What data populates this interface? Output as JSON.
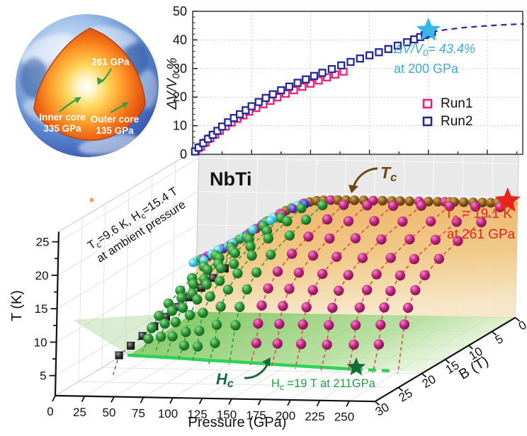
{
  "earth": {
    "label_core_pressure": "261 GPa",
    "label_inner_core_1": "Inner core",
    "label_inner_core_2": "335 GPa",
    "label_outer_core_1": "Outer core",
    "label_outer_core_2": "135 GPa"
  },
  "chart_data": [
    {
      "id": "volume-compression",
      "type": "scatter",
      "xlabel": "",
      "ylabel": "ΔV/V_0 %",
      "xlim": [
        0,
        280
      ],
      "ylim": [
        0,
        50
      ],
      "xticks_gridlines": [
        50,
        100,
        150,
        200,
        250
      ],
      "yticks": [
        0,
        10,
        20,
        30,
        40,
        50
      ],
      "grid": "dotted",
      "legend": {
        "position": "right-middle",
        "entries": [
          {
            "label": "Run1",
            "color": "#ee1e7c"
          },
          {
            "label": "Run2",
            "color": "#252a96"
          }
        ]
      },
      "series": [
        {
          "name": "Run1",
          "marker": "open-square",
          "color": "#ee1e7c",
          "x": [
            3,
            7,
            11,
            15,
            19,
            23,
            28,
            33,
            38,
            43,
            48,
            54,
            60,
            66,
            72,
            79,
            86,
            93,
            100,
            107,
            114,
            121,
            128
          ],
          "y": [
            1.1,
            2.6,
            4.1,
            5.6,
            6.9,
            8.2,
            9.7,
            11.1,
            12.4,
            13.6,
            14.9,
            16.2,
            17.5,
            18.7,
            19.9,
            21.2,
            22.4,
            23.6,
            24.7,
            25.8,
            26.9,
            27.9,
            28.9
          ]
        },
        {
          "name": "Run2",
          "marker": "open-square",
          "color": "#252a96",
          "x": [
            2,
            5,
            9,
            13,
            17,
            21,
            25,
            30,
            35,
            40,
            45,
            50,
            56,
            62,
            68,
            75,
            82,
            89,
            96,
            103,
            110,
            118,
            126,
            134,
            142,
            150,
            158,
            166,
            174,
            182,
            188,
            193,
            197,
            200,
            203
          ],
          "y": [
            1.0,
            2.3,
            3.9,
            5.4,
            6.8,
            8.2,
            9.7,
            11.2,
            12.7,
            14.0,
            15.4,
            16.8,
            18.3,
            19.7,
            21.0,
            22.4,
            23.7,
            25.0,
            26.2,
            27.4,
            28.5,
            29.8,
            31.1,
            32.3,
            33.5,
            34.6,
            35.7,
            36.8,
            38.0,
            39.2,
            40.2,
            41.0,
            41.7,
            42.2,
            42.7
          ]
        }
      ],
      "fit_extrapolation": {
        "style": "dashed",
        "color": "#2b2f9e",
        "x": [
          203,
          215,
          230,
          245,
          260,
          275,
          281
        ],
        "y": [
          42.8,
          43.6,
          44.3,
          44.8,
          45.2,
          45.5,
          45.6
        ]
      },
      "annotation": {
        "line1": "ΔV/V_0= 43.4%",
        "line2": "at 200 GPa",
        "color": "#3fa9dc",
        "star_x": 200,
        "star_y": 43.4,
        "star_color": "#37b6ea"
      }
    },
    {
      "id": "nbti-3d-phase-diagram",
      "type": "scatter3d",
      "title": "NbTi",
      "x_axis": {
        "label": "Pressure (GPa)",
        "range": [
          0,
          272
        ],
        "ticks": [
          0,
          25,
          50,
          75,
          100,
          125,
          150,
          175,
          200,
          225,
          250
        ]
      },
      "y_axis": {
        "label": "B (T)",
        "range": [
          0,
          30
        ],
        "ticks": [
          0,
          5,
          10,
          15,
          20,
          25,
          30
        ]
      },
      "z_axis": {
        "label": "T (K)",
        "range": [
          2,
          26.5
        ],
        "ticks": [
          5,
          10,
          15,
          20,
          25
        ]
      },
      "sphere_palette": {
        "green": "#2a9235",
        "magenta": "#c0227e",
        "brown": "#8a5a1a",
        "cyan": "#45ccdf",
        "purple": "#6a35c8",
        "blue": "#3a3ae0",
        "black": "#3c3c3c"
      },
      "tc_curve": {
        "color": "#f7a13d",
        "P": [
          0,
          10,
          20,
          30,
          40,
          50,
          60,
          70,
          80,
          90,
          100,
          110,
          130,
          150,
          170,
          190,
          210,
          230,
          250,
          261,
          272
        ],
        "T": [
          9.6,
          10.4,
          11.3,
          12.3,
          13.4,
          14.6,
          15.8,
          16.9,
          17.8,
          18.5,
          18.9,
          19.05,
          19.1,
          19.1,
          19.1,
          19.1,
          19.1,
          19.1,
          19.1,
          19.1,
          19.1
        ]
      },
      "hc_curve": {
        "color": "#2fd157",
        "P": [
          5,
          25,
          50,
          75,
          100,
          125,
          150,
          175,
          200,
          211
        ],
        "B": [
          15.5,
          15.8,
          16.2,
          16.7,
          17.1,
          17.5,
          18.0,
          18.4,
          18.8,
          19.0
        ],
        "dashed_extension_P": [
          211,
          245
        ]
      },
      "ridge_markers": {
        "P": [
          0,
          4,
          9,
          13,
          18,
          22,
          27,
          31,
          36,
          40,
          45,
          50,
          55,
          60,
          65,
          70,
          75,
          80,
          85,
          90,
          95,
          101,
          107,
          113,
          119,
          126,
          133,
          141,
          149,
          157,
          165,
          172,
          180,
          188,
          196,
          204,
          210,
          214,
          218,
          226,
          234,
          242,
          249,
          255,
          261
        ],
        "colors": [
          "cyan",
          "green",
          "magenta",
          "cyan",
          "brown",
          "purple",
          "cyan",
          "magenta",
          "green",
          "cyan",
          "brown",
          "magenta",
          "purple",
          "green",
          "cyan",
          "magenta",
          "brown",
          "green",
          "cyan",
          "purple",
          "brown",
          "brown",
          "brown",
          "magenta",
          "brown",
          "brown",
          "brown",
          "brown",
          "magenta",
          "brown",
          "brown",
          "brown",
          "brown",
          "magenta",
          "brown",
          "brown",
          "magenta",
          "brown",
          "brown",
          "brown",
          "brown",
          "brown",
          "brown",
          "brown",
          "brown"
        ]
      },
      "extra_markers": [
        [
          5,
          2,
          10.2,
          "cyan"
        ],
        [
          12,
          1.5,
          10.7,
          "purple"
        ],
        [
          18,
          3,
          11,
          "cyan"
        ],
        [
          26,
          2,
          12.2,
          "cyan"
        ],
        [
          33,
          1,
          12.7,
          "magenta"
        ],
        [
          40,
          2.5,
          13.5,
          "cyan"
        ],
        [
          48,
          1.5,
          14.3,
          "purple"
        ],
        [
          55,
          2,
          15.3,
          "cyan"
        ],
        [
          62,
          1,
          16.1,
          "green"
        ],
        [
          70,
          2,
          16.7,
          "cyan"
        ],
        [
          78,
          1.5,
          17.5,
          "magenta"
        ],
        [
          85,
          1,
          18.1,
          "purple"
        ],
        [
          95,
          1,
          18.8,
          "blue"
        ]
      ],
      "field_scans": [
        {
          "P": 28,
          "color": "black",
          "marker": "cube",
          "B": [
            1,
            3.5,
            6,
            8.5,
            11,
            13.5,
            16,
            18.5,
            21,
            23.5
          ],
          "T": [
            9,
            8.6,
            8.2,
            7.8,
            7.4,
            7,
            6.6,
            6.2,
            5.8,
            5.4
          ]
        },
        {
          "P": 20,
          "color": "green",
          "B": [
            1,
            3.5,
            6,
            8.5,
            11,
            13,
            14.5,
            15.2
          ],
          "T": [
            10.9,
            10.3,
            9.6,
            8.8,
            7.9,
            6.9,
            5.7,
            4.4
          ]
        },
        {
          "P": 33,
          "color": "green",
          "B": [
            1,
            3.5,
            6,
            9,
            11.5,
            13.5,
            15,
            15.8
          ],
          "T": [
            12.2,
            11.6,
            10.9,
            10,
            9,
            7.9,
            6.6,
            5
          ]
        },
        {
          "P": 46,
          "color": "green",
          "B": [
            1,
            4,
            7,
            10,
            12.5,
            14.5,
            16,
            16.6
          ],
          "T": [
            13.7,
            13,
            12.2,
            11.2,
            10.1,
            8.8,
            7.3,
            5.4
          ]
        },
        {
          "P": 60,
          "color": "green",
          "B": [
            1,
            4,
            7,
            10,
            13,
            15,
            16.5,
            17.3,
            17.6
          ],
          "T": [
            15.4,
            14.7,
            13.9,
            12.9,
            11.7,
            10.3,
            8.6,
            6.4,
            4.5
          ]
        },
        {
          "P": 75,
          "color": "green",
          "B": [
            1,
            4,
            7.5,
            11,
            14,
            16,
            17.5,
            18.2,
            18.5
          ],
          "T": [
            16.7,
            16,
            15.1,
            14,
            12.7,
            11.2,
            9.4,
            7,
            4.8
          ]
        },
        {
          "P": 92,
          "color": "green",
          "B": [
            1,
            4,
            8,
            11.5,
            14.5,
            16.5,
            18,
            18.8,
            19.1
          ],
          "T": [
            18.2,
            17.5,
            16.6,
            15.5,
            14.1,
            12.5,
            10.6,
            8.2,
            5.6
          ]
        },
        {
          "P": 110,
          "color": "green",
          "B": [
            1,
            4.5,
            8,
            12,
            15,
            17,
            18.5,
            19.3
          ],
          "T": [
            18.7,
            18,
            17.1,
            15.9,
            14.5,
            12.8,
            10.8,
            8.4
          ]
        },
        {
          "P": 128,
          "color": "magenta",
          "B": [
            1,
            4.5,
            8.5,
            12,
            15,
            17,
            18.3,
            19,
            19.3
          ],
          "T": [
            18.8,
            18.1,
            17.2,
            16.1,
            14.7,
            13,
            11,
            8.6,
            5.8
          ]
        },
        {
          "P": 148,
          "color": "magenta",
          "B": [
            1,
            5,
            9,
            12.5,
            15.5,
            17.5,
            18.8,
            19.5,
            19.8
          ],
          "T": [
            18.8,
            18.1,
            17.2,
            16.1,
            14.8,
            13.2,
            11.2,
            8.8,
            6
          ]
        },
        {
          "P": 170,
          "color": "magenta",
          "B": [
            1,
            5,
            9,
            13,
            16,
            18,
            19.3,
            20,
            20.3
          ],
          "T": [
            18.8,
            18.2,
            17.3,
            16.2,
            14.9,
            13.3,
            11.3,
            9,
            6.2
          ]
        },
        {
          "P": 194,
          "color": "magenta",
          "B": [
            1,
            5,
            9.5,
            13.5,
            16.5,
            18.5,
            19.8,
            20.5,
            20.8
          ],
          "T": [
            18.9,
            18.2,
            17.4,
            16.3,
            15,
            13.5,
            11.5,
            9.2,
            6.4
          ]
        },
        {
          "P": 218,
          "color": "magenta",
          "B": [
            1,
            5,
            9.5,
            13.5,
            16.5,
            18.5,
            20,
            20.8,
            21.1
          ],
          "T": [
            18.9,
            18.3,
            17.5,
            16.4,
            15.2,
            13.7,
            11.7,
            9.4,
            6.6
          ]
        },
        {
          "P": 240,
          "color": "magenta",
          "B": [
            1,
            5,
            9.5,
            14,
            17,
            19,
            20.3,
            21,
            21.3
          ],
          "T": [
            18.9,
            18.3,
            17.5,
            16.5,
            15.3,
            13.8,
            11.9,
            9.6,
            6.8
          ]
        },
        {
          "P": 261,
          "color": "magenta",
          "B": [
            1,
            5,
            10,
            14,
            17,
            19,
            20.5,
            21.2
          ],
          "T": [
            18.9,
            18.3,
            17.6,
            16.6,
            15.4,
            14,
            12,
            9.8
          ]
        }
      ],
      "annotations": {
        "ambient": {
          "line1": "T_c=9.6 K, H_c=15.4 T",
          "line2": "at ambient pressure"
        },
        "tc_label": "T_c",
        "tc_point": {
          "line1": "T_c = 19.1 K",
          "line2": "at 261 GPa",
          "color": "#e8241c",
          "P": 261,
          "T": 19.1
        },
        "hc_label": "H_c",
        "hc_point": {
          "text": "H_c =19 T at 211GPa",
          "color": "#21a04a",
          "P": 211,
          "B": 19
        }
      }
    }
  ]
}
